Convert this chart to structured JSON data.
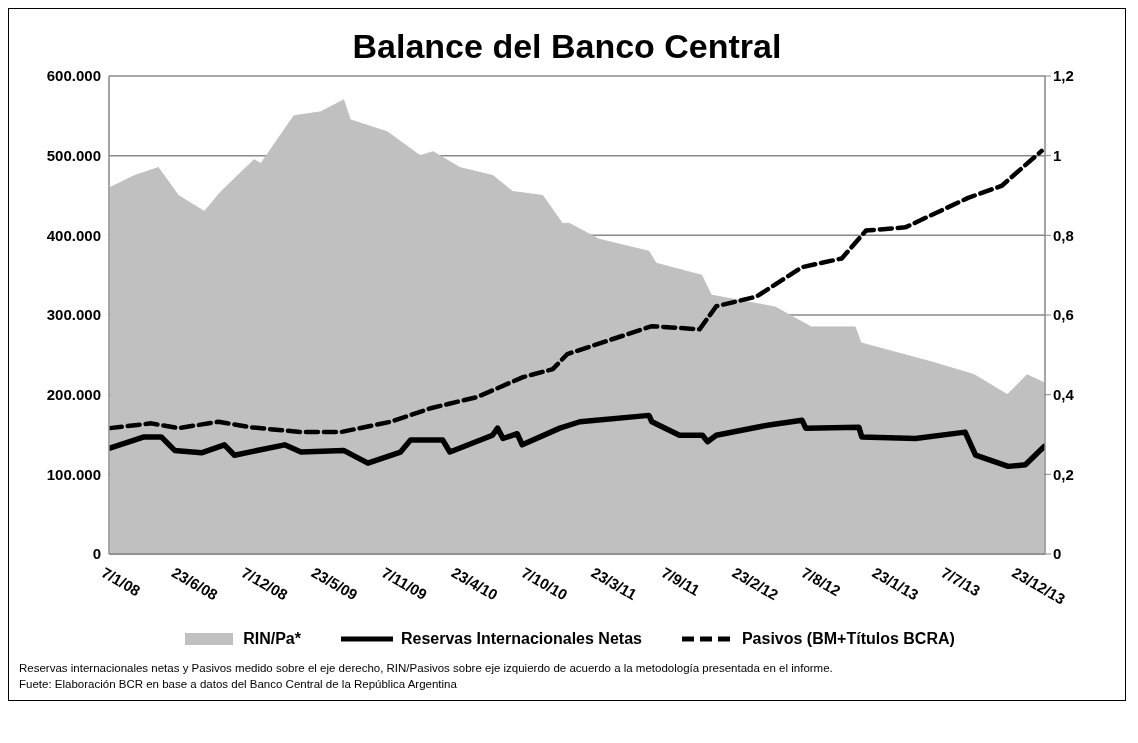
{
  "chart_data": {
    "type": "line",
    "title": "Balance del Banco Central",
    "xlim": [
      "2008-01-05",
      "2014-02-20"
    ],
    "xticks": [
      {
        "value": "2008-01-07",
        "label": "7/1/08"
      },
      {
        "value": "2008-06-23",
        "label": "23/6/08"
      },
      {
        "value": "2008-12-07",
        "label": "7/12/08"
      },
      {
        "value": "2009-05-23",
        "label": "23/5/09"
      },
      {
        "value": "2009-11-07",
        "label": "7/11/09"
      },
      {
        "value": "2010-04-23",
        "label": "23/4/10"
      },
      {
        "value": "2010-10-07",
        "label": "7/10/10"
      },
      {
        "value": "2011-03-23",
        "label": "23/3/11"
      },
      {
        "value": "2011-09-07",
        "label": "7/9/11"
      },
      {
        "value": "2012-02-23",
        "label": "23/2/12"
      },
      {
        "value": "2012-08-07",
        "label": "7/8/12"
      },
      {
        "value": "2013-01-23",
        "label": "23/1/13"
      },
      {
        "value": "2013-07-07",
        "label": "7/7/13"
      },
      {
        "value": "2013-12-23",
        "label": "23/12/13"
      }
    ],
    "ylim": [
      0,
      600000
    ],
    "yticks": [
      0,
      {
        "value": 100000,
        "label": "100.000"
      },
      {
        "value": 200000,
        "label": "200.000"
      },
      {
        "value": 300000,
        "label": "300.000"
      },
      {
        "value": 400000,
        "label": "400.000"
      },
      {
        "value": 500000,
        "label": "500.000"
      },
      {
        "value": 600000,
        "label": "600.000"
      }
    ],
    "y2lim": [
      0,
      1.2
    ],
    "y2ticks": [
      0,
      {
        "value": 0.2,
        "label": "0,2"
      },
      {
        "value": 0.4,
        "label": "0,4"
      },
      {
        "value": 0.6,
        "label": "0,6"
      },
      {
        "value": 0.8,
        "label": "0,8"
      },
      1,
      {
        "value": 1.2,
        "label": "1,2"
      }
    ],
    "grid": "y",
    "legend": "bottom",
    "marker": "none",
    "series": [
      {
        "name": "RIN/Pa*",
        "type": "area",
        "axis": "y2",
        "color": "#c0c0c0",
        "x": [
          "2008-01-07",
          "2008-03-06",
          "2008-05-02",
          "2008-06-19",
          "2008-08-20",
          "2008-09-29",
          "2008-12-17",
          "2009-01-02",
          "2009-03-22",
          "2009-05-25",
          "2009-07-19",
          "2009-08-04",
          "2009-10-31",
          "2010-01-18",
          "2010-02-18",
          "2010-04-23",
          "2010-07-11",
          "2010-08-27",
          "2010-11-07",
          "2010-12-24",
          "2011-01-10",
          "2011-03-22",
          "2011-07-19",
          "2011-08-05",
          "2011-11-22",
          "2011-12-15",
          "2012-05-16",
          "2012-08-10",
          "2012-11-23",
          "2012-12-07",
          "2013-06-01",
          "2013-09-04",
          "2013-11-22",
          "2014-01-08",
          "2014-02-18"
        ],
        "values": [
          0.92,
          0.95,
          0.97,
          0.9,
          0.86,
          0.91,
          0.99,
          0.98,
          1.1,
          1.11,
          1.14,
          1.09,
          1.06,
          1.0,
          1.01,
          0.97,
          0.95,
          0.91,
          0.9,
          0.83,
          0.83,
          0.79,
          0.76,
          0.73,
          0.7,
          0.65,
          0.62,
          0.57,
          0.57,
          0.53,
          0.48,
          0.45,
          0.4,
          0.45,
          0.43
        ]
      },
      {
        "name": "Reservas Internacionales Netas",
        "type": "line",
        "line_style": "solid",
        "color": "#000000",
        "x": [
          "2008-01-07",
          "2008-03-29",
          "2008-05-09",
          "2008-06-10",
          "2008-08-13",
          "2008-10-07",
          "2008-10-31",
          "2009-02-28",
          "2009-04-08",
          "2009-07-19",
          "2009-09-15",
          "2009-12-02",
          "2009-12-26",
          "2010-03-13",
          "2010-03-30",
          "2010-07-10",
          "2010-07-22",
          "2010-08-04",
          "2010-09-07",
          "2010-09-19",
          "2010-12-18",
          "2011-02-04",
          "2011-07-19",
          "2011-07-26",
          "2011-09-30",
          "2011-11-24",
          "2011-12-06",
          "2011-12-27",
          "2012-05-01",
          "2012-07-19",
          "2012-07-28",
          "2012-12-02",
          "2012-12-09",
          "2013-04-16",
          "2013-08-13",
          "2013-09-07",
          "2013-11-24",
          "2014-01-04",
          "2014-02-18"
        ],
        "values": [
          133000,
          147000,
          147000,
          130000,
          127000,
          137000,
          124000,
          137000,
          128000,
          130000,
          114000,
          128000,
          143000,
          143000,
          128000,
          149000,
          158000,
          145000,
          151000,
          137000,
          158000,
          166000,
          174000,
          166000,
          149000,
          149000,
          141000,
          149000,
          162000,
          168000,
          158000,
          159000,
          147000,
          145000,
          153000,
          124000,
          110000,
          112000,
          135000
        ]
      },
      {
        "name": "Pasivos (BM+Títulos BCRA)",
        "type": "line",
        "line_style": "dashed",
        "color": "#000000",
        "x": [
          "2008-01-07",
          "2008-04-15",
          "2008-06-19",
          "2008-09-23",
          "2008-12-10",
          "2009-04-08",
          "2009-07-12",
          "2009-11-08",
          "2010-02-12",
          "2010-06-03",
          "2010-09-21",
          "2010-12-01",
          "2011-01-05",
          "2011-07-26",
          "2011-11-17",
          "2011-12-27",
          "2012-04-01",
          "2012-07-19",
          "2012-10-22",
          "2012-12-19",
          "2013-03-23",
          "2013-08-20",
          "2013-11-08",
          "2014-02-12"
        ],
        "values": [
          158000,
          164000,
          158000,
          166000,
          159000,
          153000,
          153000,
          166000,
          183000,
          197000,
          222000,
          232000,
          251000,
          286000,
          282000,
          311000,
          323000,
          360000,
          371000,
          406000,
          410000,
          447000,
          462000,
          506000
        ]
      }
    ],
    "annotations": [
      "Reservas internacionales netas y Pasivos medido sobre el eje derecho, RIN/Pasivos sobre eje izquierdo de acuerdo a la metodología presentada en el informe.",
      "Fuete: Elaboración BCR en base a datos del Banco Central de la República Argentina"
    ]
  }
}
